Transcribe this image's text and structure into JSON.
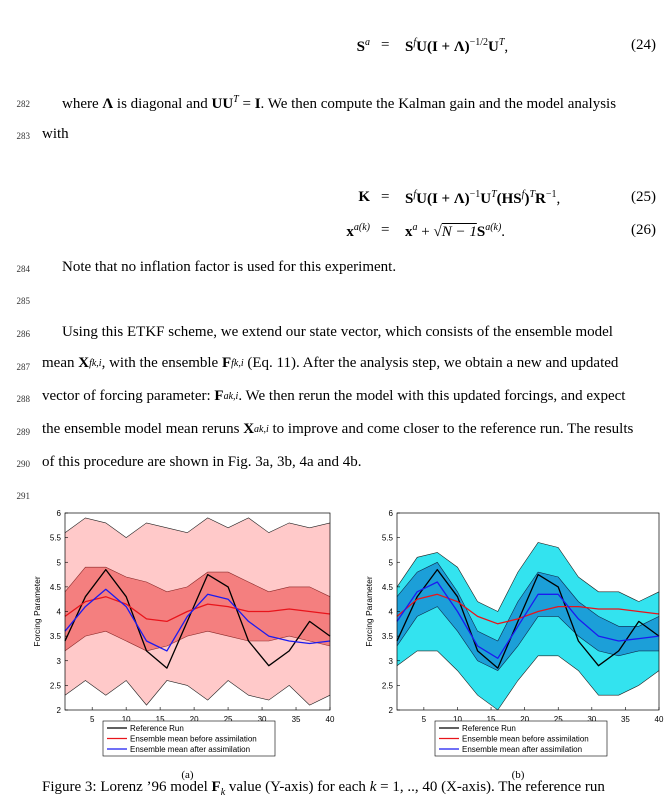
{
  "equations": [
    {
      "lhs": [
        "S",
        "a"
      ],
      "rhs": [
        "S",
        "f",
        "U(I + Λ)",
        "−1/2",
        "U",
        "T",
        ","
      ],
      "number": "(24)"
    },
    {
      "lhs": [
        "K"
      ],
      "rhs": [
        "S",
        "f",
        "U(I + Λ)",
        "−1",
        "U",
        "T",
        "(HS",
        "f",
        ")",
        "T",
        "R",
        "−1",
        ","
      ],
      "number": "(25)"
    },
    {
      "lhs": [
        "x",
        "a(k)"
      ],
      "rhs": [
        "x",
        "a",
        " + ",
        "√",
        "N − 1",
        "S",
        "a(k)",
        "."
      ],
      "number": "(26)"
    }
  ],
  "equals": "=",
  "lines": [
    {
      "number": "282",
      "runs": [
        "where ",
        "Λ",
        " is diagonal and ",
        "UU",
        "T",
        " = ",
        "I",
        ". We then compute the Kalman gain and the model analysis"
      ]
    },
    {
      "number": "283",
      "runs": [
        "with"
      ]
    },
    {
      "number": "284",
      "runs": [
        "Note that no inflation factor is used for this experiment."
      ]
    },
    {
      "number": "285",
      "runs": []
    },
    {
      "number": "286",
      "runs": [
        "Using this ETKF scheme, we extend our state vector, which consists of the ensemble model"
      ]
    },
    {
      "number": "287",
      "runs": [
        "mean ",
        "X",
        "f",
        "k,i",
        ", with the ensemble ",
        "F",
        "f",
        "k,i",
        " (Eq. 11). After the analysis step, we obtain a new and updated"
      ]
    },
    {
      "number": "288",
      "runs": [
        "vector of forcing parameter: ",
        "F",
        "a",
        "k,i",
        ". We then rerun the model with this updated forcings, and expect"
      ]
    },
    {
      "number": "289",
      "runs": [
        "the ensemble model mean reruns ",
        "X",
        "a",
        "k,i",
        " to improve and come closer to the reference run. The results"
      ]
    },
    {
      "number": "290",
      "runs": [
        "of this procedure are shown in Fig. 3a, 3b, 4a and 4b."
      ]
    },
    {
      "number": "291",
      "runs": []
    }
  ],
  "caption": [
    "Figure 3: Lorenz ’96 model ",
    "F",
    "k",
    " value (Y-axis) for each ",
    "k",
    " = 1, .., 40 (X-axis). The reference run"
  ],
  "chart_data": [
    {
      "type": "line",
      "subcaption": "(a)",
      "ylabel": "Forcing Parameter",
      "xlim": [
        1,
        40
      ],
      "xticks": [
        5,
        10,
        15,
        20,
        25,
        30,
        35,
        40
      ],
      "ylim": [
        2,
        6
      ],
      "yticks": [
        2,
        2.5,
        3,
        3.5,
        4,
        4.5,
        5,
        5.5,
        6
      ],
      "x": [
        1,
        4,
        7,
        10,
        13,
        16,
        19,
        22,
        25,
        28,
        31,
        34,
        37,
        40
      ],
      "bands": [
        {
          "color": "#ffc9c9",
          "stroke": "#222222",
          "lower": [
            2.3,
            2.6,
            2.3,
            2.6,
            2.1,
            2.6,
            2.5,
            2.2,
            2.6,
            2.3,
            2.2,
            2.5,
            2.1,
            2.3
          ],
          "upper": [
            5.6,
            5.9,
            5.8,
            5.5,
            5.8,
            5.7,
            5.6,
            5.9,
            5.7,
            5.9,
            5.6,
            5.8,
            5.7,
            5.8
          ]
        },
        {
          "color": "#f47f7f",
          "stroke": "#8a2a2a",
          "lower": [
            3.2,
            3.5,
            3.6,
            3.4,
            3.2,
            3.3,
            3.5,
            3.6,
            3.5,
            3.4,
            3.4,
            3.5,
            3.4,
            3.3
          ],
          "upper": [
            4.4,
            4.9,
            4.9,
            4.7,
            4.6,
            4.4,
            4.5,
            4.8,
            4.8,
            4.6,
            4.4,
            4.5,
            4.5,
            4.3
          ]
        }
      ],
      "series": [
        {
          "name": "Reference Run",
          "color": "#000000",
          "values": [
            3.4,
            4.3,
            4.85,
            4.3,
            3.2,
            2.85,
            3.8,
            4.75,
            4.5,
            3.4,
            2.9,
            3.2,
            3.8,
            3.5
          ]
        },
        {
          "name": "Ensemble mean before assimilation",
          "color": "#e8141b",
          "values": [
            3.9,
            4.2,
            4.3,
            4.15,
            3.85,
            3.8,
            4.0,
            4.15,
            4.1,
            4.0,
            4.0,
            4.05,
            4.0,
            3.95
          ]
        },
        {
          "name": "Ensemble mean after assimilation",
          "color": "#1b1bf0",
          "values": [
            3.6,
            4.1,
            4.45,
            4.1,
            3.4,
            3.2,
            3.9,
            4.35,
            4.25,
            3.8,
            3.5,
            3.4,
            3.35,
            3.4
          ]
        }
      ]
    },
    {
      "type": "line",
      "subcaption": "(b)",
      "ylabel": "Forcing Parameter",
      "xlim": [
        1,
        40
      ],
      "xticks": [
        5,
        10,
        15,
        20,
        25,
        30,
        35,
        40
      ],
      "ylim": [
        2,
        6
      ],
      "yticks": [
        2,
        2.5,
        3,
        3.5,
        4,
        4.5,
        5,
        5.5,
        6
      ],
      "x": [
        1,
        4,
        7,
        10,
        13,
        16,
        19,
        22,
        25,
        28,
        31,
        34,
        37,
        40
      ],
      "bands": [
        {
          "color": "#33e3ef",
          "stroke": "#222222",
          "lower": [
            2.9,
            3.2,
            3.2,
            2.8,
            2.3,
            2.0,
            2.6,
            3.1,
            3.1,
            2.8,
            2.3,
            2.3,
            2.5,
            2.8
          ],
          "upper": [
            4.5,
            5.1,
            5.2,
            4.9,
            4.2,
            4.0,
            4.8,
            5.4,
            5.3,
            4.7,
            4.4,
            4.4,
            4.2,
            4.4
          ]
        },
        {
          "color": "#1c9fd8",
          "stroke": "#102a4a",
          "lower": [
            3.3,
            3.9,
            4.1,
            3.6,
            3.0,
            2.8,
            3.3,
            3.9,
            3.9,
            3.5,
            3.2,
            3.1,
            3.2,
            3.2
          ],
          "upper": [
            4.3,
            4.8,
            5.0,
            4.4,
            3.6,
            3.4,
            4.2,
            4.8,
            4.7,
            4.2,
            3.9,
            3.7,
            3.7,
            3.9
          ]
        }
      ],
      "series": [
        {
          "name": "Reference Run",
          "color": "#000000",
          "values": [
            3.4,
            4.3,
            4.85,
            4.3,
            3.2,
            2.85,
            3.8,
            4.75,
            4.5,
            3.4,
            2.9,
            3.2,
            3.8,
            3.5
          ]
        },
        {
          "name": "Ensemble mean before assimilation",
          "color": "#e8141b",
          "values": [
            3.9,
            4.25,
            4.35,
            4.2,
            3.9,
            3.75,
            3.85,
            4.0,
            4.1,
            4.1,
            4.05,
            4.05,
            4.0,
            3.95
          ]
        },
        {
          "name": "Ensemble mean after assimilation",
          "color": "#1b1bf0",
          "values": [
            3.8,
            4.4,
            4.6,
            4.0,
            3.3,
            3.05,
            3.7,
            4.35,
            4.35,
            3.85,
            3.5,
            3.4,
            3.45,
            3.5
          ]
        }
      ]
    }
  ]
}
